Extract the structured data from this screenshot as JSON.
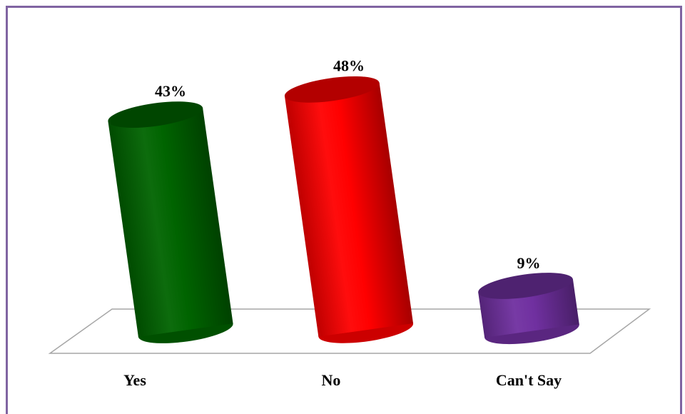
{
  "chart_data": {
    "type": "bar",
    "style": "3d-cylinder",
    "categories": [
      "Yes",
      "No",
      "Can't Say"
    ],
    "values": [
      43,
      48,
      9
    ],
    "value_labels": [
      "43%",
      "48%",
      "9%"
    ],
    "colors": [
      "#006400",
      "#ff0000",
      "#7030a0"
    ],
    "ylim": [
      0,
      50
    ],
    "grid": false,
    "legend": "none",
    "frame_color": "#8064a2"
  }
}
